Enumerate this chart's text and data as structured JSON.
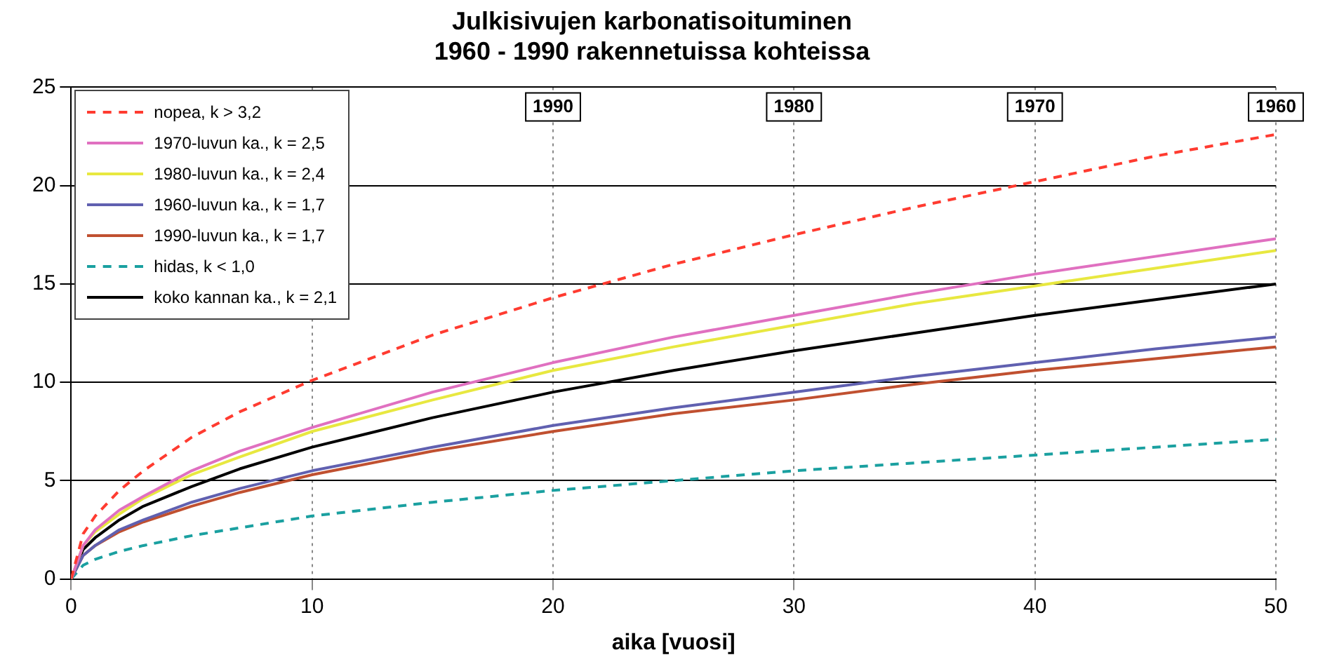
{
  "chart_data": {
    "type": "line",
    "title": "Julkisivujen karbonatisoituminen\n1960 - 1990 rakennetuissa kohteissa",
    "xlabel": "aika [vuosi]",
    "x": [
      0,
      0.5,
      1,
      2,
      3,
      5,
      7,
      10,
      15,
      20,
      25,
      30,
      35,
      40,
      45,
      50
    ],
    "xlim": [
      0,
      50
    ],
    "xticks": [
      0,
      10,
      20,
      30,
      40,
      50
    ],
    "ylim": [
      0,
      25
    ],
    "yticks": [
      0,
      5,
      10,
      15,
      20,
      25
    ],
    "grid": true,
    "legend": "top left",
    "marker": "none",
    "series": [
      {
        "name": "nopea, k > 3,2",
        "color": "#ff3b30",
        "line_style": "dashed",
        "values": [
          0,
          2.3,
          3.2,
          4.5,
          5.5,
          7.2,
          8.5,
          10.1,
          12.4,
          14.3,
          16.0,
          17.5,
          18.9,
          20.2,
          21.5,
          22.6
        ]
      },
      {
        "name": "1970-luvun ka., k = 2,5",
        "color": "#e070c0",
        "values": [
          0,
          1.7,
          2.5,
          3.5,
          4.2,
          5.5,
          6.5,
          7.7,
          9.5,
          11.0,
          12.3,
          13.4,
          14.5,
          15.5,
          16.4,
          17.3
        ]
      },
      {
        "name": "1980-luvun ka., k = 2,4",
        "color": "#e8e840",
        "values": [
          0,
          1.7,
          2.4,
          3.3,
          4.1,
          5.3,
          6.2,
          7.5,
          9.1,
          10.6,
          11.8,
          12.9,
          14.0,
          14.9,
          15.8,
          16.7
        ]
      },
      {
        "name": "1960-luvun ka., k = 1,7",
        "color": "#6060b0",
        "values": [
          0,
          1.2,
          1.7,
          2.5,
          3.0,
          3.9,
          4.6,
          5.5,
          6.7,
          7.8,
          8.7,
          9.5,
          10.3,
          11.0,
          11.7,
          12.3
        ]
      },
      {
        "name": "1990-luvun ka., k = 1,7",
        "color": "#c05030",
        "values": [
          0,
          1.2,
          1.7,
          2.4,
          2.9,
          3.7,
          4.4,
          5.3,
          6.5,
          7.5,
          8.4,
          9.1,
          9.9,
          10.6,
          11.2,
          11.8
        ]
      },
      {
        "name": "hidas, k < 1,0",
        "color": "#1aa0a0",
        "line_style": "dashed",
        "values": [
          0,
          0.7,
          1.0,
          1.4,
          1.7,
          2.2,
          2.6,
          3.2,
          3.9,
          4.5,
          5.0,
          5.5,
          5.9,
          6.3,
          6.7,
          7.1
        ]
      },
      {
        "name": "koko kannan ka., k = 2,1",
        "color": "#000000",
        "values": [
          0,
          1.5,
          2.1,
          3.0,
          3.7,
          4.7,
          5.6,
          6.7,
          8.2,
          9.5,
          10.6,
          11.6,
          12.5,
          13.4,
          14.2,
          15.0
        ]
      }
    ],
    "annotations": [
      {
        "text": "1990",
        "x": 20,
        "y": 24
      },
      {
        "text": "1980",
        "x": 30,
        "y": 24
      },
      {
        "text": "1970",
        "x": 40,
        "y": 24
      },
      {
        "text": "1960",
        "x": 50,
        "y": 24
      }
    ]
  }
}
